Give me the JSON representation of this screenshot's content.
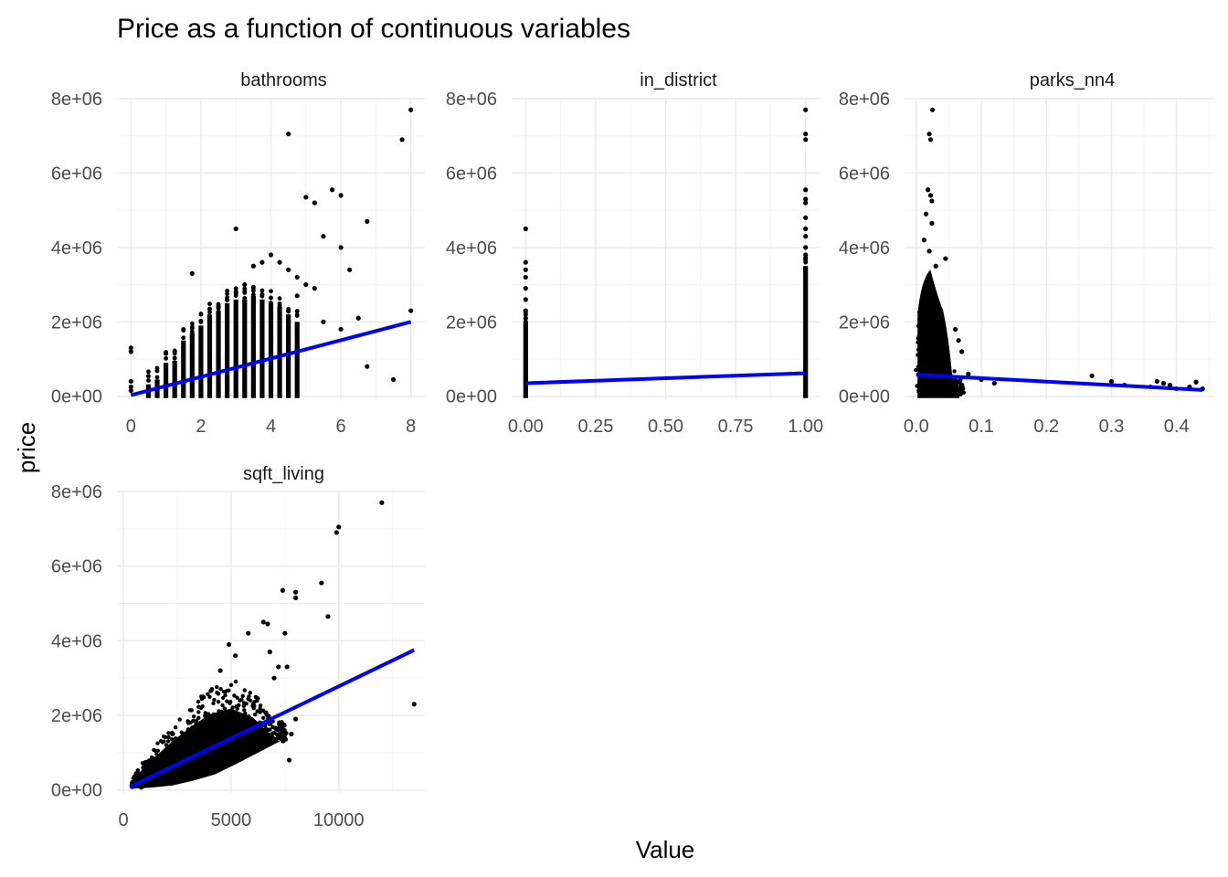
{
  "chart_data": {
    "type": "scatter",
    "title": "Price as a function of continuous variables",
    "xlabel": "Value",
    "ylabel": "price",
    "grid": true,
    "colors": {
      "points": "#000000",
      "fit_line": "#0000ff"
    },
    "panels": [
      {
        "name": "bathrooms",
        "xlim": [
          -0.4,
          8.4
        ],
        "ylim": [
          -80000,
          8000000
        ],
        "x_ticks": [
          0,
          2,
          4,
          6,
          8
        ],
        "x_tick_labels": [
          "0",
          "2",
          "4",
          "6",
          "8"
        ],
        "y_ticks": [
          0,
          2000000,
          4000000,
          6000000,
          8000000
        ],
        "y_tick_labels": [
          "0e+00",
          "2e+06",
          "4e+06",
          "6e+06",
          "8e+06"
        ],
        "fit": {
          "x": [
            0,
            8
          ],
          "y": [
            30000,
            2000000
          ]
        },
        "points": [
          [
            0,
            1300000
          ],
          [
            0,
            1200000
          ],
          [
            0,
            400000
          ],
          [
            0,
            250000
          ],
          [
            0,
            150000
          ],
          [
            0.75,
            350000
          ],
          [
            0.75,
            250000
          ],
          [
            1,
            1150000
          ],
          [
            1.25,
            1200000
          ],
          [
            1.5,
            1300000
          ],
          [
            1.75,
            3300000
          ],
          [
            2,
            1600000
          ],
          [
            2.25,
            2000000
          ],
          [
            2.5,
            2400000
          ],
          [
            2.75,
            2600000
          ],
          [
            3,
            4500000
          ],
          [
            3,
            2800000
          ],
          [
            3.25,
            3000000
          ],
          [
            3.5,
            3500000
          ],
          [
            3.75,
            3600000
          ],
          [
            4,
            3800000
          ],
          [
            4.25,
            3600000
          ],
          [
            4.5,
            7050000
          ],
          [
            4.5,
            3400000
          ],
          [
            4.75,
            3200000
          ],
          [
            5,
            5350000
          ],
          [
            5.25,
            5200000
          ],
          [
            5.5,
            4300000
          ],
          [
            5.75,
            5550000
          ],
          [
            6,
            5400000
          ],
          [
            6,
            4000000
          ],
          [
            6.25,
            3400000
          ],
          [
            6.5,
            2100000
          ],
          [
            6.75,
            4700000
          ],
          [
            6.75,
            800000
          ],
          [
            7.5,
            450000
          ],
          [
            7.75,
            6900000
          ],
          [
            8,
            7700000
          ],
          [
            8,
            2300000
          ],
          [
            5.5,
            2000000
          ],
          [
            6,
            1800000
          ],
          [
            5,
            3000000
          ],
          [
            4.75,
            2700000
          ],
          [
            5.25,
            2900000
          ]
        ],
        "bands": [
          {
            "x": 0.5,
            "top": 320000
          },
          {
            "x": 0.75,
            "top": 450000
          },
          {
            "x": 1,
            "top": 900000
          },
          {
            "x": 1.25,
            "top": 950000
          },
          {
            "x": 1.5,
            "top": 1500000
          },
          {
            "x": 1.75,
            "top": 1700000
          },
          {
            "x": 2,
            "top": 1900000
          },
          {
            "x": 2.25,
            "top": 2200000
          },
          {
            "x": 2.5,
            "top": 2300000
          },
          {
            "x": 2.75,
            "top": 2500000
          },
          {
            "x": 3,
            "top": 2600000
          },
          {
            "x": 3.25,
            "top": 2600000
          },
          {
            "x": 3.5,
            "top": 2700000
          },
          {
            "x": 3.75,
            "top": 2600000
          },
          {
            "x": 4,
            "top": 2500000
          },
          {
            "x": 4.25,
            "top": 2400000
          },
          {
            "x": 4.5,
            "top": 2200000
          },
          {
            "x": 4.75,
            "top": 2000000
          }
        ]
      },
      {
        "name": "in_district",
        "xlim": [
          -0.05,
          1.05
        ],
        "ylim": [
          -80000,
          8000000
        ],
        "x_ticks": [
          0,
          0.25,
          0.5,
          0.75,
          1
        ],
        "x_tick_labels": [
          "0.00",
          "0.25",
          "0.50",
          "0.75",
          "1.00"
        ],
        "y_ticks": [
          0,
          2000000,
          4000000,
          6000000,
          8000000
        ],
        "y_tick_labels": [
          "0e+00",
          "2e+06",
          "4e+06",
          "6e+06",
          "8e+06"
        ],
        "fit": {
          "x": [
            0,
            1
          ],
          "y": [
            350000,
            620000
          ]
        },
        "points": [
          [
            0,
            4500000
          ],
          [
            0,
            3600000
          ],
          [
            0,
            3400000
          ],
          [
            0,
            3200000
          ],
          [
            0,
            2900000
          ],
          [
            0,
            2600000
          ],
          [
            0,
            2300000
          ],
          [
            0,
            2100000
          ],
          [
            1,
            7700000
          ],
          [
            1,
            7050000
          ],
          [
            1,
            6900000
          ],
          [
            1,
            5550000
          ],
          [
            1,
            5300000
          ],
          [
            1,
            5200000
          ],
          [
            1,
            4800000
          ],
          [
            1,
            4500000
          ],
          [
            1,
            4300000
          ],
          [
            1,
            4000000
          ],
          [
            1,
            3800000
          ],
          [
            1,
            3700000
          ]
        ],
        "bands": [
          {
            "x": 0,
            "top": 2000000
          },
          {
            "x": 1,
            "top": 3500000
          }
        ]
      },
      {
        "name": "parks_nn4",
        "xlim": [
          -0.018,
          0.458
        ],
        "ylim": [
          -80000,
          8000000
        ],
        "x_ticks": [
          0,
          0.1,
          0.2,
          0.3,
          0.4
        ],
        "x_tick_labels": [
          "0.0",
          "0.1",
          "0.2",
          "0.3",
          "0.4"
        ],
        "y_ticks": [
          0,
          2000000,
          4000000,
          6000000,
          8000000
        ],
        "y_tick_labels": [
          "0e+00",
          "2e+06",
          "4e+06",
          "6e+06",
          "8e+06"
        ],
        "fit": {
          "x": [
            0,
            0.44
          ],
          "y": [
            580000,
            170000
          ]
        },
        "points": [
          [
            0.025,
            7700000
          ],
          [
            0.02,
            7050000
          ],
          [
            0.022,
            6900000
          ],
          [
            0.018,
            5550000
          ],
          [
            0.022,
            5400000
          ],
          [
            0.024,
            5250000
          ],
          [
            0.015,
            4900000
          ],
          [
            0.024,
            4650000
          ],
          [
            0.012,
            4200000
          ],
          [
            0.02,
            3900000
          ],
          [
            0.045,
            3700000
          ],
          [
            0.03,
            3500000
          ],
          [
            0.06,
            1800000
          ],
          [
            0.065,
            1500000
          ],
          [
            0.07,
            1200000
          ],
          [
            0.08,
            600000
          ],
          [
            0.1,
            450000
          ],
          [
            0.12,
            350000
          ],
          [
            0.27,
            550000
          ],
          [
            0.3,
            400000
          ],
          [
            0.32,
            300000
          ],
          [
            0.36,
            250000
          ],
          [
            0.37,
            400000
          ],
          [
            0.38,
            350000
          ],
          [
            0.39,
            300000
          ],
          [
            0.4,
            200000
          ],
          [
            0.42,
            250000
          ],
          [
            0.43,
            380000
          ],
          [
            0.44,
            200000
          ]
        ],
        "blob": {
          "x_range": [
            0.002,
            0.055
          ],
          "y_top": 3400000
        }
      },
      {
        "name": "sqft_living",
        "xlim": [
          -300,
          14000
        ],
        "ylim": [
          -80000,
          8000000
        ],
        "x_ticks": [
          0,
          5000,
          10000
        ],
        "x_tick_labels": [
          "0",
          "5000",
          "10000"
        ],
        "y_ticks": [
          0,
          2000000,
          4000000,
          6000000,
          8000000
        ],
        "y_tick_labels": [
          "0e+00",
          "2e+06",
          "4e+06",
          "6e+06",
          "8e+06"
        ],
        "fit": {
          "x": [
            300,
            13500
          ],
          "y": [
            80000,
            3750000
          ]
        },
        "points": [
          [
            12000,
            7700000
          ],
          [
            10000,
            7050000
          ],
          [
            9900,
            6900000
          ],
          [
            9200,
            5550000
          ],
          [
            7400,
            5350000
          ],
          [
            8000,
            5300000
          ],
          [
            8000,
            5150000
          ],
          [
            9500,
            4650000
          ],
          [
            6500,
            4500000
          ],
          [
            6700,
            4450000
          ],
          [
            7500,
            4200000
          ],
          [
            6800,
            3700000
          ],
          [
            7200,
            3300000
          ],
          [
            7600,
            3300000
          ],
          [
            7000,
            3000000
          ],
          [
            13500,
            2300000
          ],
          [
            8000,
            1900000
          ],
          [
            7800,
            1500000
          ],
          [
            7200,
            1400000
          ],
          [
            7700,
            800000
          ],
          [
            5800,
            4200000
          ],
          [
            4900,
            3900000
          ],
          [
            5200,
            3600000
          ],
          [
            4500,
            3200000
          ]
        ],
        "cloud": {
          "x_range": [
            300,
            7000
          ]
        }
      }
    ]
  }
}
